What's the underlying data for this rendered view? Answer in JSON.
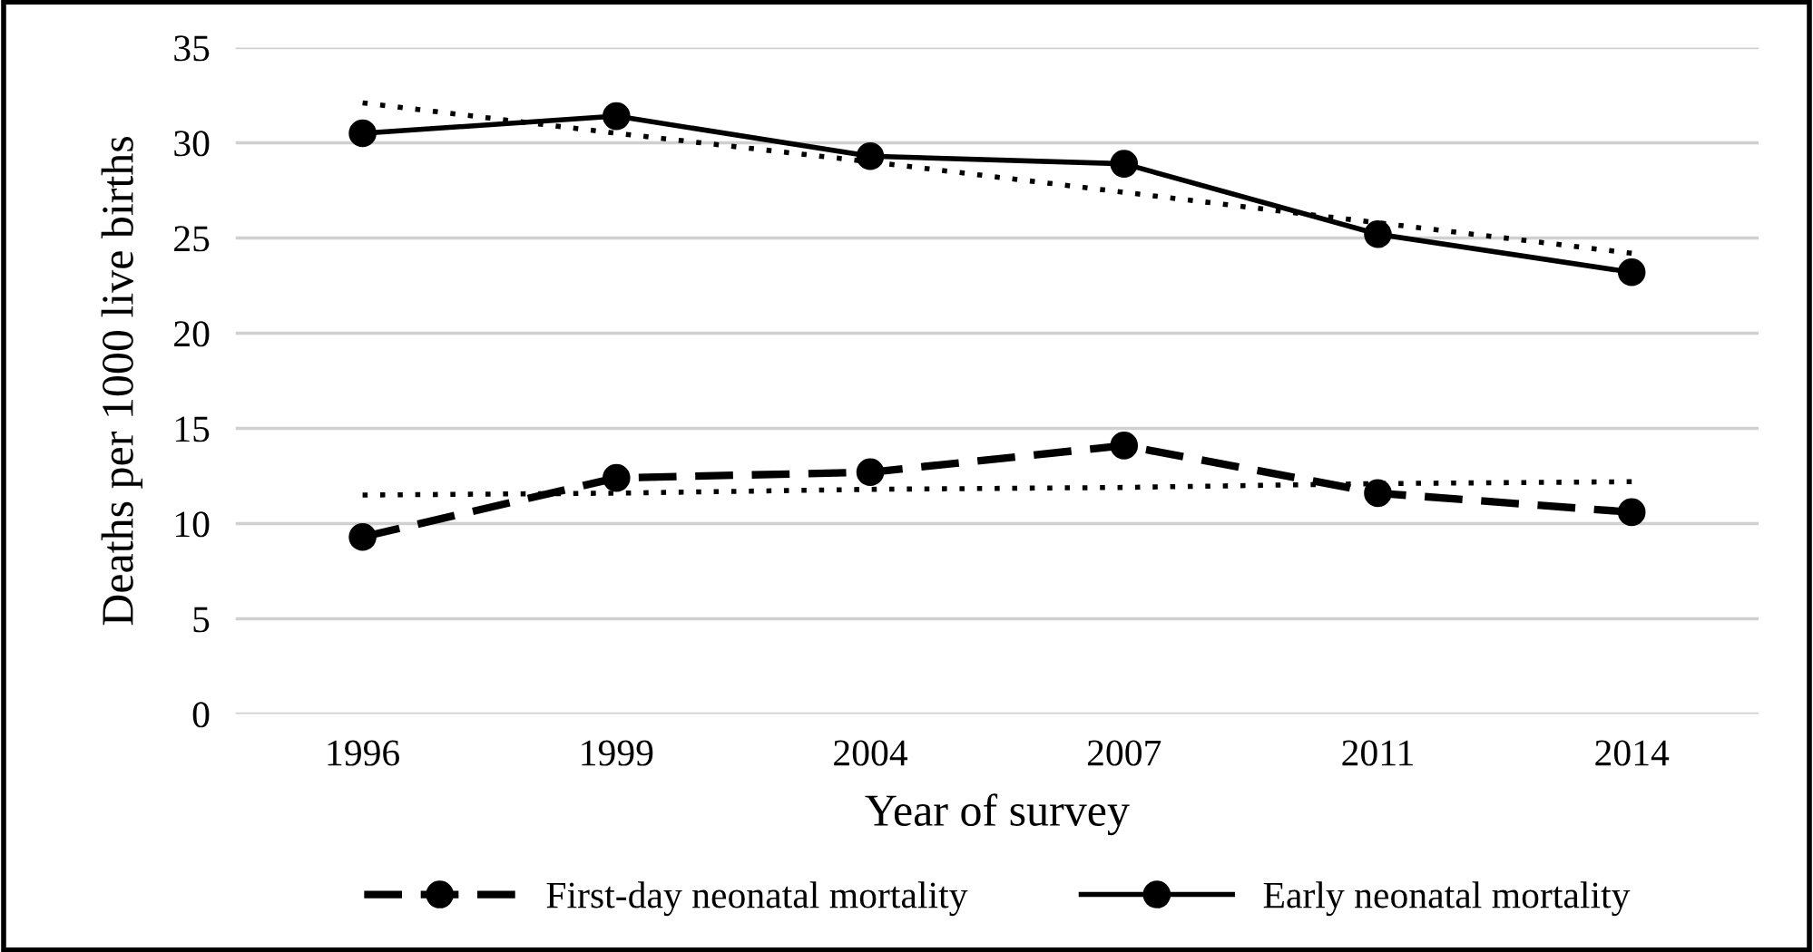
{
  "chart_data": {
    "type": "line",
    "xlabel": "Year of survey",
    "ylabel": "Deaths per 1000 live births",
    "categories": [
      "1996",
      "1999",
      "2004",
      "2007",
      "2011",
      "2014"
    ],
    "series": [
      {
        "name": "First-day neonatal mortality",
        "color": "#000000",
        "line_style": "dashed",
        "marker": "circle",
        "values": [
          9.3,
          12.4,
          12.7,
          14.1,
          11.6,
          10.6
        ]
      },
      {
        "name": "Early neonatal mortality",
        "color": "#000000",
        "line_style": "solid",
        "marker": "circle",
        "values": [
          30.5,
          31.4,
          29.3,
          28.9,
          25.2,
          23.2
        ]
      },
      {
        "color": "#000000",
        "line_style": "dotted",
        "marker": "none",
        "values": [
          11.5,
          11.6,
          11.8,
          11.9,
          12.1,
          12.2
        ]
      },
      {
        "color": "#000000",
        "line_style": "dotted",
        "marker": "none",
        "values": [
          32.1,
          30.5,
          29.0,
          27.4,
          25.8,
          24.2
        ]
      }
    ],
    "ylim": [
      0,
      35
    ],
    "yticks": [
      0,
      5,
      10,
      15,
      20,
      25,
      30,
      35
    ],
    "grid": "y",
    "legend": "bottom"
  }
}
